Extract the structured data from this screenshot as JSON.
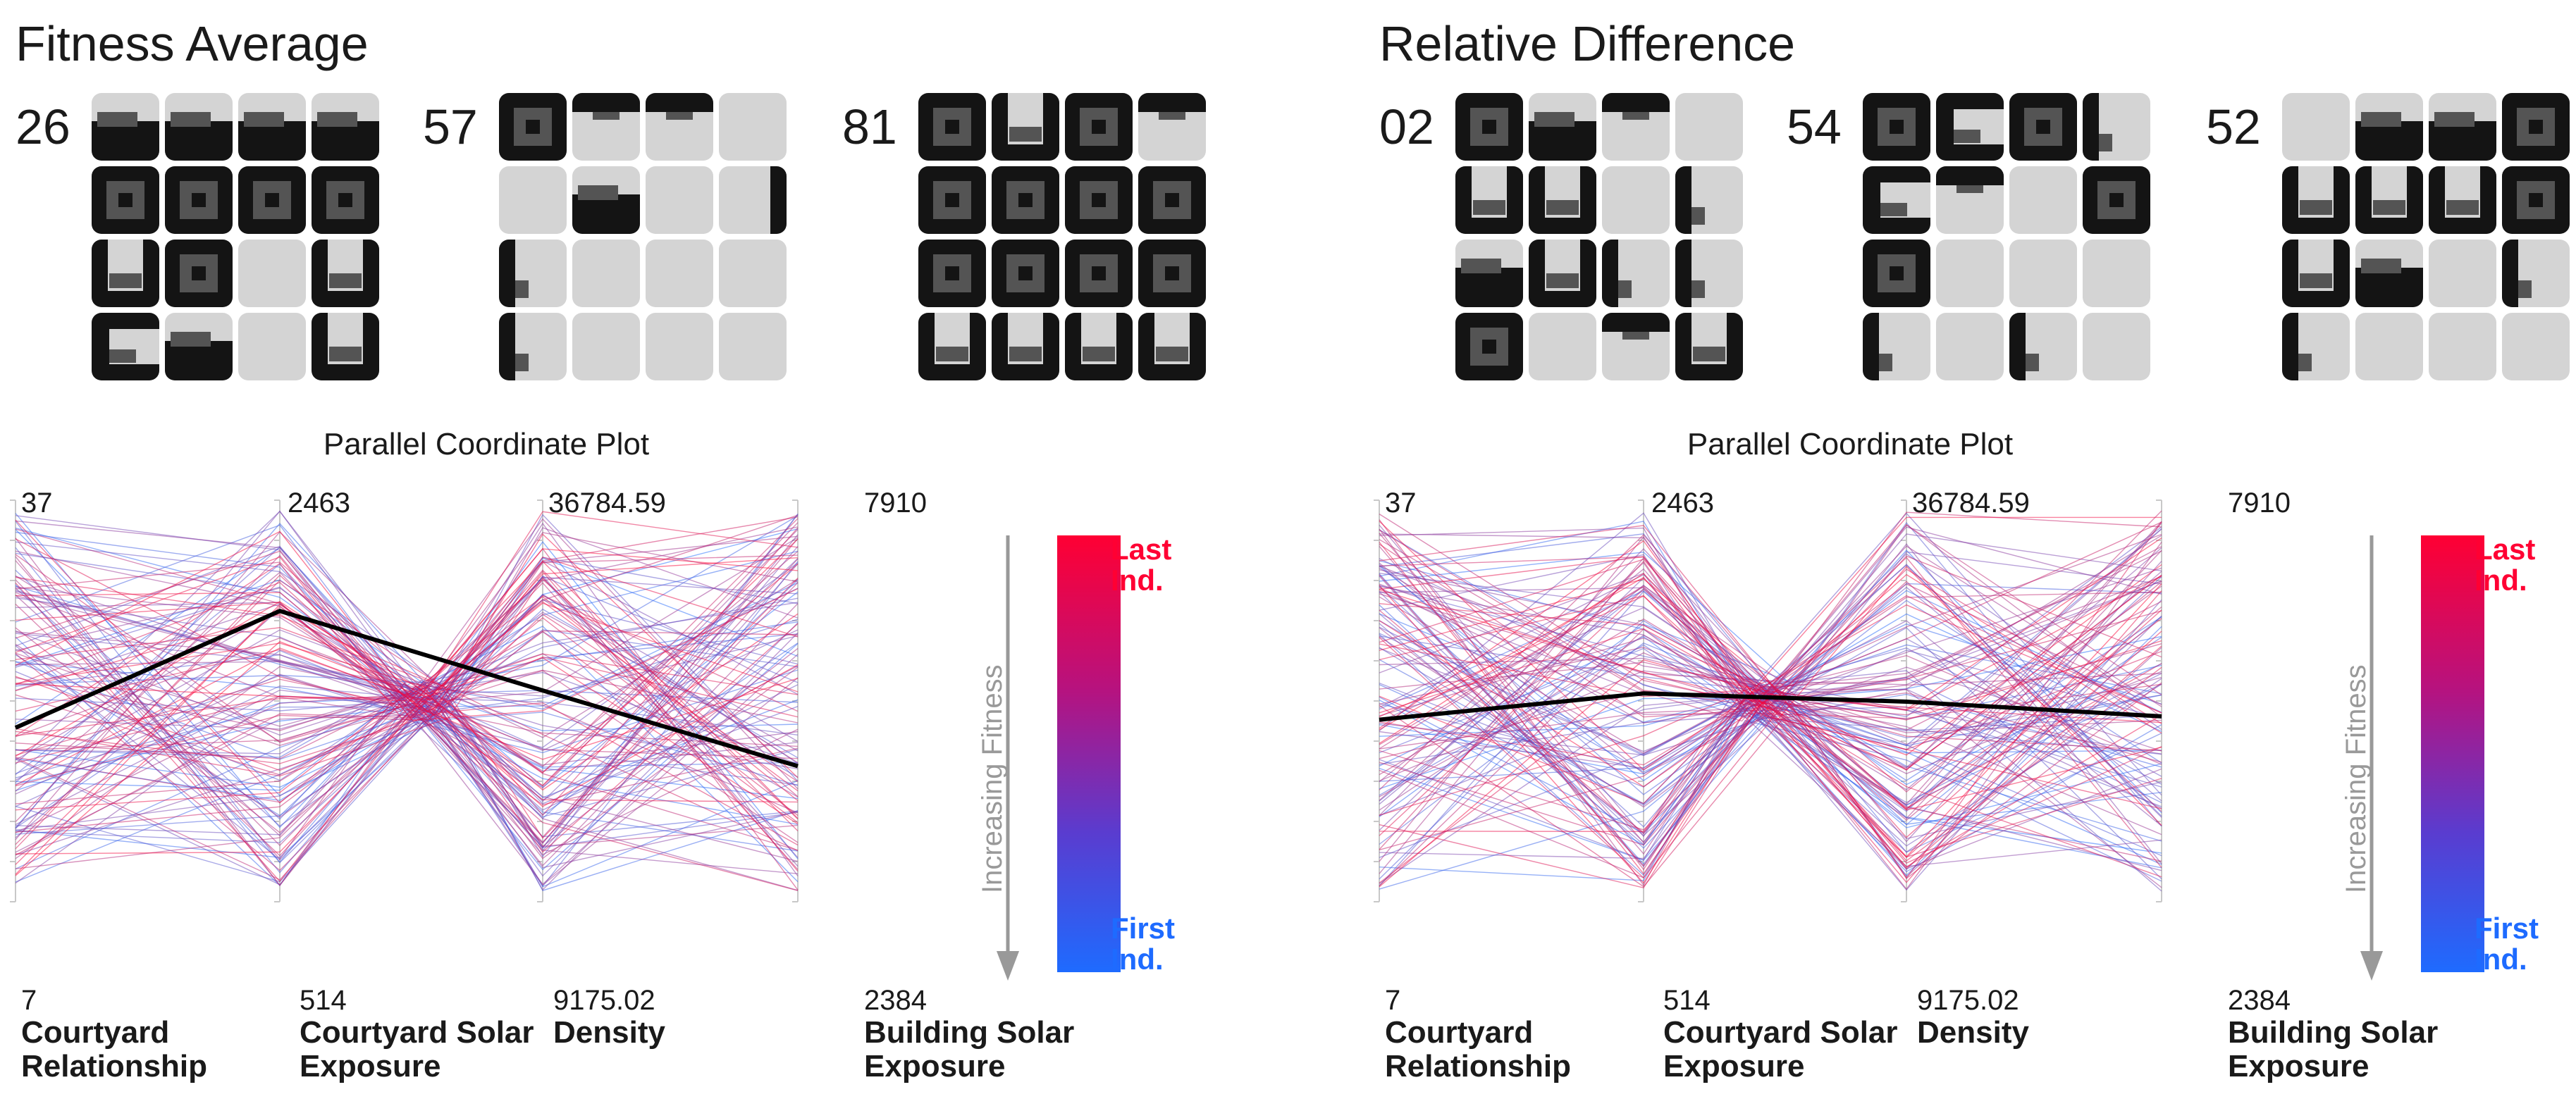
{
  "colors": {
    "tile_empty": "#d4d4d4",
    "tile_dark": "#141414",
    "tile_mid": "#545454",
    "first_ind": "#1e6bff",
    "last_ind": "#ff0033",
    "mean_line": "#000000",
    "fitness_arrow": "#999999"
  },
  "panels": [
    {
      "title": "Fitness Average",
      "groups": [
        {
          "label": "26",
          "tiles": [
            [
              "B",
              "B",
              "B",
              "B"
            ],
            [
              "R",
              "R",
              "R",
              "R"
            ],
            [
              "U",
              "R",
              "E",
              "U"
            ],
            [
              "C",
              "B",
              "E",
              "U"
            ]
          ]
        },
        {
          "label": "57",
          "tiles": [
            [
              "R",
              "T",
              "T",
              "E"
            ],
            [
              "E",
              "B",
              "E",
              "RE"
            ],
            [
              "L",
              "E",
              "E",
              "E"
            ],
            [
              "L",
              "E",
              "E",
              "E"
            ]
          ]
        },
        {
          "label": "81",
          "tiles": [
            [
              "R",
              "U",
              "R",
              "T"
            ],
            [
              "R",
              "R",
              "R",
              "R"
            ],
            [
              "R",
              "R",
              "R",
              "R"
            ],
            [
              "U",
              "U",
              "U",
              "U"
            ]
          ]
        }
      ],
      "chart_data": {
        "type": "parallel_coordinates",
        "title": "Parallel Coordinate Plot",
        "axes": [
          {
            "name": "Courtyard Relationship",
            "max_label": "37",
            "min_label": "7",
            "min": 7,
            "max": 37
          },
          {
            "name": "Courtyard Solar Exposure",
            "max_label": "2463",
            "min_label": "514",
            "min": 514,
            "max": 2463
          },
          {
            "name": "Density",
            "max_label": "36784.59",
            "min_label": "9175.02",
            "min": 9175.02,
            "max": 36784.59
          },
          {
            "name": "Building Solar Exposure",
            "max_label": "7910",
            "min_label": "2384",
            "min": 2384,
            "max": 7910
          }
        ],
        "highlighted_line": [
          20,
          1925,
          23700,
          4250
        ],
        "n_individuals": 140,
        "convergence_axis_pair": [
          1,
          2
        ],
        "convergence_fraction": 0.55,
        "axis_note": "Increasing Fitness",
        "colorbar": {
          "top_label": "Last Ind.",
          "bottom_label": "First Ind."
        }
      }
    },
    {
      "title": "Relative Difference",
      "groups": [
        {
          "label": "02",
          "tiles": [
            [
              "R",
              "B",
              "T",
              "E"
            ],
            [
              "U",
              "U",
              "E",
              "L"
            ],
            [
              "B",
              "U",
              "L",
              "L"
            ],
            [
              "R",
              "E",
              "T",
              "U"
            ]
          ]
        },
        {
          "label": "54",
          "tiles": [
            [
              "R",
              "C",
              "R",
              "L"
            ],
            [
              "C",
              "T",
              "E",
              "R"
            ],
            [
              "R",
              "E",
              "E",
              "E"
            ],
            [
              "L",
              "E",
              "L",
              "E"
            ]
          ]
        },
        {
          "label": "52",
          "tiles": [
            [
              "E",
              "B",
              "B",
              "R"
            ],
            [
              "U",
              "U",
              "U",
              "R"
            ],
            [
              "U",
              "B",
              "E",
              "L"
            ],
            [
              "L",
              "E",
              "E",
              "E"
            ]
          ]
        }
      ],
      "chart_data": {
        "type": "parallel_coordinates",
        "title": "Parallel Coordinate Plot",
        "axes": [
          {
            "name": "Courtyard Relationship",
            "max_label": "37",
            "min_label": "7",
            "min": 7,
            "max": 37
          },
          {
            "name": "Courtyard Solar Exposure",
            "max_label": "2463",
            "min_label": "514",
            "min": 514,
            "max": 2463
          },
          {
            "name": "Density",
            "max_label": "36784.59",
            "min_label": "9175.02",
            "min": 9175.02,
            "max": 36784.59
          },
          {
            "name": "Building Solar Exposure",
            "max_label": "7910",
            "min_label": "2384",
            "min": 2384,
            "max": 7910
          }
        ],
        "highlighted_line": [
          20.6,
          1525,
          22930,
          4935
        ],
        "n_individuals": 140,
        "convergence_axis_pair": [
          1,
          2
        ],
        "convergence_fraction": 0.46,
        "axis_note": "Increasing Fitness",
        "colorbar": {
          "top_label": "Last Ind.",
          "bottom_label": "First Ind."
        }
      }
    }
  ]
}
